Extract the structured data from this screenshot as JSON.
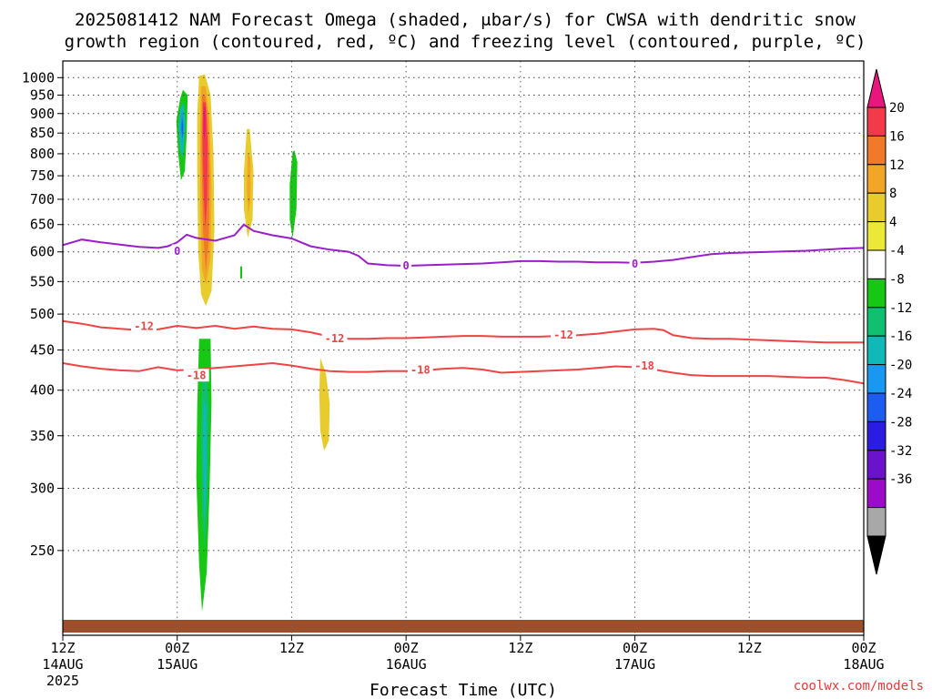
{
  "chart_data": {
    "type": "heatmap",
    "title_lines": [
      "2025081412 NAM Forecast Omega (shaded, μbar/s) for CWSA with dendritic snow",
      "growth region (contoured, red, ºC) and freezing level (contoured, purple, ºC)"
    ],
    "xlabel": "Forecast Time (UTC)",
    "credit": "coolwx.com/models",
    "x_hours_range": [
      0,
      84
    ],
    "x_ticks": [
      {
        "h": 0,
        "l1": "12Z",
        "l2": "14AUG",
        "l3": "2025"
      },
      {
        "h": 12,
        "l1": "00Z",
        "l2": "15AUG",
        "l3": ""
      },
      {
        "h": 24,
        "l1": "12Z",
        "l2": "",
        "l3": ""
      },
      {
        "h": 36,
        "l1": "00Z",
        "l2": "16AUG",
        "l3": ""
      },
      {
        "h": 48,
        "l1": "12Z",
        "l2": "",
        "l3": ""
      },
      {
        "h": 60,
        "l1": "00Z",
        "l2": "17AUG",
        "l3": ""
      },
      {
        "h": 72,
        "l1": "12Z",
        "l2": "",
        "l3": ""
      },
      {
        "h": 84,
        "l1": "00Z",
        "l2": "18AUG",
        "l3": ""
      }
    ],
    "y_scale": "log",
    "y_range_hpa": [
      1050,
      195
    ],
    "y_ticks": [
      250,
      300,
      350,
      400,
      450,
      500,
      550,
      600,
      650,
      700,
      750,
      800,
      850,
      900,
      950,
      1000
    ],
    "colorbar": {
      "labels": [
        "20",
        "16",
        "12",
        "8",
        "4",
        "-4",
        "-8",
        "-12",
        "-16",
        "-20",
        "-24",
        "-28",
        "-32",
        "-36"
      ],
      "colors": [
        "#e8167d",
        "#f43a4a",
        "#f07a2a",
        "#f2a628",
        "#e8cc2e",
        "#ece838",
        "#ffffff",
        "#16c714",
        "#10c070",
        "#10b8b8",
        "#1898f0",
        "#1c5cf0",
        "#2a1ce0",
        "#6a12cc",
        "#9c0cc8",
        "#a8a8a8",
        "#000000"
      ]
    },
    "contours": [
      {
        "name": "dgz-top",
        "value_label": "-18",
        "color": "#ee4444",
        "points": [
          [
            0,
            433
          ],
          [
            2,
            429
          ],
          [
            4,
            426
          ],
          [
            6,
            424
          ],
          [
            8,
            423
          ],
          [
            10,
            428
          ],
          [
            12,
            424
          ],
          [
            14,
            425
          ],
          [
            16,
            427
          ],
          [
            18,
            429
          ],
          [
            20,
            431
          ],
          [
            22,
            433
          ],
          [
            24,
            430
          ],
          [
            26,
            426
          ],
          [
            28,
            423
          ],
          [
            30,
            422
          ],
          [
            32,
            422
          ],
          [
            34,
            423
          ],
          [
            36,
            423
          ],
          [
            38,
            424
          ],
          [
            40,
            426
          ],
          [
            42,
            427
          ],
          [
            44,
            425
          ],
          [
            46,
            421
          ],
          [
            48,
            422
          ],
          [
            50,
            423
          ],
          [
            52,
            424
          ],
          [
            54,
            425
          ],
          [
            56,
            427
          ],
          [
            58,
            429
          ],
          [
            60,
            428
          ],
          [
            62,
            425
          ],
          [
            64,
            421
          ],
          [
            66,
            418
          ],
          [
            68,
            417
          ],
          [
            70,
            417
          ],
          [
            72,
            417
          ],
          [
            74,
            417
          ],
          [
            76,
            416
          ],
          [
            78,
            415
          ],
          [
            80,
            415
          ],
          [
            82,
            412
          ],
          [
            84,
            408
          ]
        ],
        "labels": [
          [
            14,
            418
          ],
          [
            37.5,
            425
          ],
          [
            61,
            430
          ]
        ]
      },
      {
        "name": "dgz-bottom",
        "value_label": "-12",
        "color": "#ee4444",
        "points": [
          [
            0,
            490
          ],
          [
            2,
            486
          ],
          [
            4,
            481
          ],
          [
            6,
            479
          ],
          [
            8,
            477
          ],
          [
            10,
            478
          ],
          [
            12,
            483
          ],
          [
            14,
            480
          ],
          [
            16,
            483
          ],
          [
            18,
            479
          ],
          [
            20,
            482
          ],
          [
            22,
            479
          ],
          [
            24,
            478
          ],
          [
            26,
            474
          ],
          [
            28,
            468
          ],
          [
            30,
            465
          ],
          [
            32,
            465
          ],
          [
            34,
            466
          ],
          [
            36,
            466
          ],
          [
            38,
            467
          ],
          [
            40,
            468
          ],
          [
            42,
            469
          ],
          [
            44,
            469
          ],
          [
            46,
            468
          ],
          [
            48,
            468
          ],
          [
            50,
            468
          ],
          [
            52,
            469
          ],
          [
            54,
            470
          ],
          [
            56,
            472
          ],
          [
            58,
            475
          ],
          [
            60,
            478
          ],
          [
            62,
            479
          ],
          [
            63,
            477
          ],
          [
            64,
            470
          ],
          [
            66,
            466
          ],
          [
            68,
            465
          ],
          [
            70,
            465
          ],
          [
            72,
            464
          ],
          [
            74,
            463
          ],
          [
            76,
            462
          ],
          [
            78,
            461
          ],
          [
            80,
            460
          ],
          [
            82,
            460
          ],
          [
            84,
            460
          ]
        ],
        "labels": [
          [
            8.5,
            483
          ],
          [
            28.5,
            466
          ],
          [
            52.5,
            471
          ]
        ]
      },
      {
        "name": "freezing-level",
        "value_label": "0",
        "color": "#9a1ec9",
        "points": [
          [
            0,
            612
          ],
          [
            2,
            622
          ],
          [
            4,
            617
          ],
          [
            6,
            613
          ],
          [
            8,
            609
          ],
          [
            10,
            607
          ],
          [
            11,
            610
          ],
          [
            12,
            617
          ],
          [
            13,
            631
          ],
          [
            14,
            625
          ],
          [
            16,
            620
          ],
          [
            18,
            630
          ],
          [
            19,
            650
          ],
          [
            20,
            638
          ],
          [
            22,
            630
          ],
          [
            24,
            624
          ],
          [
            26,
            610
          ],
          [
            28,
            604
          ],
          [
            30,
            600
          ],
          [
            31,
            593
          ],
          [
            32,
            580
          ],
          [
            34,
            577
          ],
          [
            36,
            576
          ],
          [
            38,
            577
          ],
          [
            40,
            578
          ],
          [
            42,
            579
          ],
          [
            44,
            580
          ],
          [
            46,
            582
          ],
          [
            48,
            584
          ],
          [
            50,
            584
          ],
          [
            52,
            583
          ],
          [
            54,
            583
          ],
          [
            56,
            582
          ],
          [
            58,
            582
          ],
          [
            60,
            581
          ],
          [
            62,
            583
          ],
          [
            64,
            586
          ],
          [
            66,
            591
          ],
          [
            68,
            596
          ],
          [
            70,
            598
          ],
          [
            72,
            599
          ],
          [
            74,
            600
          ],
          [
            76,
            601
          ],
          [
            78,
            602
          ],
          [
            80,
            604
          ],
          [
            82,
            606
          ],
          [
            84,
            607
          ]
        ],
        "labels": [
          [
            12,
            602
          ],
          [
            36,
            577
          ],
          [
            60,
            580
          ]
        ]
      }
    ],
    "shaded_regions": [
      {
        "name": "green-updraft-upper",
        "color": "#16c714",
        "points": [
          [
            14.3,
            465
          ],
          [
            14.1,
            380
          ],
          [
            14.0,
            310
          ],
          [
            14.3,
            240
          ],
          [
            14.6,
            209
          ],
          [
            15.1,
            235
          ],
          [
            15.4,
            300
          ],
          [
            15.6,
            385
          ],
          [
            15.5,
            465
          ]
        ]
      },
      {
        "name": "green-updraft-upper-core",
        "color": "#10c070",
        "points": [
          [
            14.6,
            420
          ],
          [
            14.5,
            350
          ],
          [
            14.6,
            280
          ],
          [
            14.9,
            250
          ],
          [
            15.2,
            300
          ],
          [
            15.3,
            380
          ],
          [
            15.1,
            420
          ]
        ]
      },
      {
        "name": "teal-updraft-upper-core",
        "color": "#10b8b8",
        "points": [
          [
            14.75,
            390
          ],
          [
            14.7,
            330
          ],
          [
            14.85,
            270
          ],
          [
            15.05,
            310
          ],
          [
            15.05,
            380
          ]
        ]
      },
      {
        "name": "yellow-downdraft-upper",
        "color": "#e8cc2e",
        "points": [
          [
            27.0,
            440
          ],
          [
            26.9,
            395
          ],
          [
            27.0,
            355
          ],
          [
            27.4,
            335
          ],
          [
            27.9,
            345
          ],
          [
            28.0,
            385
          ],
          [
            27.6,
            420
          ]
        ]
      },
      {
        "name": "yellow-downdraft-main",
        "color": "#e8cc2e",
        "points": [
          [
            14.3,
            1005
          ],
          [
            14.1,
            900
          ],
          [
            14.1,
            750
          ],
          [
            14.2,
            600
          ],
          [
            14.5,
            530
          ],
          [
            15.0,
            512
          ],
          [
            15.6,
            535
          ],
          [
            15.9,
            640
          ],
          [
            15.8,
            800
          ],
          [
            15.5,
            950
          ],
          [
            14.9,
            1010
          ]
        ]
      },
      {
        "name": "orange-downdraft-main",
        "color": "#f2a628",
        "points": [
          [
            14.5,
            975
          ],
          [
            14.4,
            850
          ],
          [
            14.4,
            700
          ],
          [
            14.6,
            570
          ],
          [
            15.0,
            545
          ],
          [
            15.5,
            590
          ],
          [
            15.6,
            720
          ],
          [
            15.4,
            880
          ],
          [
            15.0,
            975
          ]
        ]
      },
      {
        "name": "orange2-downdraft-main",
        "color": "#f07a2a",
        "points": [
          [
            14.6,
            950
          ],
          [
            14.55,
            800
          ],
          [
            14.7,
            640
          ],
          [
            15.0,
            565
          ],
          [
            15.3,
            620
          ],
          [
            15.4,
            760
          ],
          [
            15.2,
            900
          ],
          [
            14.9,
            950
          ]
        ]
      },
      {
        "name": "red-downdraft-main",
        "color": "#f43a4a",
        "points": [
          [
            14.7,
            930
          ],
          [
            14.65,
            820
          ],
          [
            14.8,
            700
          ],
          [
            14.95,
            640
          ],
          [
            15.15,
            700
          ],
          [
            15.2,
            820
          ],
          [
            15.0,
            930
          ]
        ]
      },
      {
        "name": "pink-downdraft-main",
        "color": "#e8167d",
        "points": [
          [
            14.8,
            920
          ],
          [
            14.75,
            860
          ],
          [
            14.85,
            830
          ],
          [
            14.95,
            860
          ],
          [
            14.95,
            915
          ]
        ]
      },
      {
        "name": "green-updraft-lower",
        "color": "#16c714",
        "points": [
          [
            12.3,
            940
          ],
          [
            11.9,
            880
          ],
          [
            12.1,
            800
          ],
          [
            12.4,
            740
          ],
          [
            12.8,
            760
          ],
          [
            13.0,
            850
          ],
          [
            13.1,
            950
          ],
          [
            12.6,
            965
          ]
        ]
      },
      {
        "name": "teal-updraft-lower",
        "color": "#10b8b8",
        "points": [
          [
            12.35,
            915
          ],
          [
            12.15,
            870
          ],
          [
            12.3,
            810
          ],
          [
            12.6,
            790
          ],
          [
            12.85,
            870
          ],
          [
            12.7,
            930
          ]
        ]
      },
      {
        "name": "blue-updraft-lower",
        "color": "#1898f0",
        "points": [
          [
            12.45,
            905
          ],
          [
            12.35,
            860
          ],
          [
            12.5,
            820
          ],
          [
            12.7,
            860
          ],
          [
            12.6,
            905
          ]
        ]
      },
      {
        "name": "darkblue-updraft-lower",
        "color": "#1c5cf0",
        "points": [
          [
            12.5,
            890
          ],
          [
            12.45,
            860
          ],
          [
            12.55,
            835
          ],
          [
            12.62,
            870
          ]
        ]
      },
      {
        "name": "yellow-downdraft-mid",
        "color": "#e8cc2e",
        "points": [
          [
            19.3,
            860
          ],
          [
            19.0,
            760
          ],
          [
            19.0,
            680
          ],
          [
            19.4,
            625
          ],
          [
            19.9,
            660
          ],
          [
            20.0,
            760
          ],
          [
            19.6,
            860
          ]
        ]
      },
      {
        "name": "orange-downdraft-mid",
        "color": "#f2a628",
        "points": [
          [
            19.4,
            800
          ],
          [
            19.3,
            720
          ],
          [
            19.45,
            670
          ],
          [
            19.7,
            700
          ],
          [
            19.7,
            790
          ]
        ]
      },
      {
        "name": "green-updraft-mid",
        "color": "#16c714",
        "points": [
          [
            24.1,
            805
          ],
          [
            23.8,
            730
          ],
          [
            23.8,
            660
          ],
          [
            24.1,
            625
          ],
          [
            24.5,
            680
          ],
          [
            24.6,
            780
          ],
          [
            24.3,
            808
          ]
        ]
      },
      {
        "name": "green-sliver",
        "color": "#16c714",
        "points": [
          [
            18.6,
            575
          ],
          [
            18.6,
            555
          ],
          [
            18.8,
            555
          ],
          [
            18.8,
            575
          ]
        ]
      }
    ],
    "ground": {
      "name": "surface",
      "color": "#9c4f2a"
    }
  }
}
